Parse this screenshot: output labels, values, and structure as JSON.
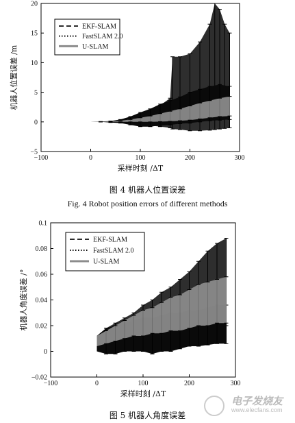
{
  "chart_data": [
    {
      "type": "line",
      "xlabel": "采样时刻 /ΔT",
      "ylabel": "机器人位置误差 /m",
      "xlim": [
        -100,
        300
      ],
      "ylim": [
        -5,
        20
      ],
      "xticks": [
        -100,
        0,
        100,
        200,
        300
      ],
      "yticks": [
        -5,
        0,
        5,
        10,
        15,
        20
      ],
      "xtick_labels": [
        "−100",
        "0",
        "100",
        "200",
        "300"
      ],
      "ytick_labels": [
        "−5",
        "0",
        "5",
        "10",
        "15",
        "20"
      ],
      "legend_position": "top-left",
      "grid": false,
      "series": [
        {
          "name": "EKF-SLAM",
          "color": "#2a2a2a",
          "style": "dashed",
          "x": [
            0,
            20,
            40,
            60,
            80,
            100,
            120,
            140,
            160,
            165,
            180,
            200,
            220,
            240,
            250,
            260,
            270,
            280
          ],
          "upper": [
            0,
            0.05,
            0.1,
            0.25,
            0.5,
            1.0,
            1.8,
            2.8,
            4.0,
            11.0,
            11.0,
            11.5,
            13.5,
            16.5,
            20.0,
            19.0,
            16.5,
            15.0
          ],
          "lower": [
            0,
            0,
            -0.05,
            -0.1,
            -0.2,
            -0.4,
            -0.6,
            -0.8,
            -1.0,
            -1.2,
            -1.3,
            -1.5,
            -1.5,
            -1.4,
            -1.3,
            -1.2,
            -1.1,
            -1.0
          ]
        },
        {
          "name": "FastSLAM 2.0",
          "color": "#000000",
          "style": "dotted",
          "x": [
            0,
            20,
            40,
            60,
            80,
            100,
            120,
            140,
            160,
            180,
            200,
            220,
            240,
            260,
            280
          ],
          "upper": [
            0,
            0.05,
            0.15,
            0.4,
            0.9,
            1.6,
            2.2,
            3.0,
            3.6,
            4.2,
            5.0,
            5.5,
            6.0,
            6.3,
            6.0
          ],
          "lower": [
            0,
            0,
            -0.1,
            -0.2,
            -0.5,
            -0.8,
            -0.8,
            -0.6,
            -0.5,
            -0.3,
            -0.2,
            0.0,
            0.2,
            0.3,
            0.4
          ]
        },
        {
          "name": "U-SLAM",
          "color": "#8c8c8c",
          "style": "solid",
          "x": [
            0,
            20,
            40,
            60,
            80,
            100,
            120,
            140,
            160,
            180,
            200,
            220,
            240,
            260,
            280
          ],
          "upper": [
            0,
            0.03,
            0.1,
            0.2,
            0.4,
            0.7,
            1.0,
            1.4,
            1.8,
            2.2,
            2.7,
            3.2,
            3.6,
            4.0,
            4.3
          ],
          "lower": [
            0,
            0,
            0,
            0,
            0,
            0,
            0,
            0.05,
            0.1,
            0.2,
            0.3,
            0.5,
            0.7,
            0.9,
            1.0
          ]
        }
      ]
    },
    {
      "type": "line",
      "xlabel": "采样时刻 /ΔT",
      "ylabel": "机器人角度误差 /°",
      "xlim": [
        -100,
        300
      ],
      "ylim": [
        -0.02,
        0.1
      ],
      "xticks": [
        -100,
        0,
        100,
        200,
        300
      ],
      "yticks": [
        -0.02,
        0,
        0.02,
        0.04,
        0.06,
        0.08,
        0.1
      ],
      "xtick_labels": [
        "−100",
        "0",
        "100",
        "200",
        "300"
      ],
      "ytick_labels": [
        "−0.02",
        "0",
        "0.02",
        "0.04",
        "0.06",
        "0.08",
        "0.1"
      ],
      "legend_position": "top-left",
      "grid": false,
      "series": [
        {
          "name": "EKF-SLAM",
          "color": "#2a2a2a",
          "style": "dashed",
          "x": [
            0,
            20,
            40,
            60,
            80,
            100,
            120,
            140,
            160,
            180,
            200,
            220,
            240,
            260,
            280
          ],
          "upper": [
            0.012,
            0.018,
            0.022,
            0.026,
            0.03,
            0.036,
            0.04,
            0.046,
            0.05,
            0.056,
            0.062,
            0.07,
            0.078,
            0.084,
            0.088
          ],
          "lower": [
            0.004,
            0.004,
            0.004,
            0.005,
            0.005,
            0.006,
            0.006,
            0.008,
            0.01,
            0.012,
            0.014,
            0.016,
            0.018,
            0.02,
            0.02
          ]
        },
        {
          "name": "FastSLAM 2.0",
          "color": "#000000",
          "style": "dotted",
          "x": [
            0,
            20,
            40,
            60,
            80,
            100,
            120,
            140,
            160,
            180,
            200,
            220,
            240,
            260,
            280
          ],
          "upper": [
            0.012,
            0.018,
            0.02,
            0.022,
            0.024,
            0.026,
            0.026,
            0.028,
            0.03,
            0.03,
            0.032,
            0.032,
            0.034,
            0.036,
            0.036
          ],
          "lower": [
            0.0,
            -0.002,
            -0.002,
            0.0,
            0.0,
            0.0,
            -0.002,
            0.0,
            0.0,
            0.002,
            0.004,
            0.004,
            0.005,
            0.006,
            0.006
          ]
        },
        {
          "name": "U-SLAM",
          "color": "#8c8c8c",
          "style": "solid",
          "x": [
            0,
            20,
            40,
            60,
            80,
            100,
            120,
            140,
            160,
            180,
            200,
            220,
            240,
            260,
            280
          ],
          "upper": [
            0.012,
            0.016,
            0.02,
            0.024,
            0.028,
            0.032,
            0.034,
            0.038,
            0.042,
            0.044,
            0.048,
            0.052,
            0.054,
            0.056,
            0.058
          ],
          "lower": [
            0.004,
            0.006,
            0.008,
            0.01,
            0.012,
            0.012,
            0.014,
            0.014,
            0.016,
            0.016,
            0.018,
            0.02,
            0.02,
            0.022,
            0.022
          ]
        }
      ]
    }
  ],
  "figure4": {
    "caption_cn": "图 4   机器人位置误差",
    "caption_en": "Fig. 4   Robot position errors of different methods"
  },
  "figure5": {
    "caption_cn": "图 5   机器人角度误差"
  },
  "watermark": {
    "cn": "电子发烧友",
    "en": "www.elecfans.com"
  }
}
